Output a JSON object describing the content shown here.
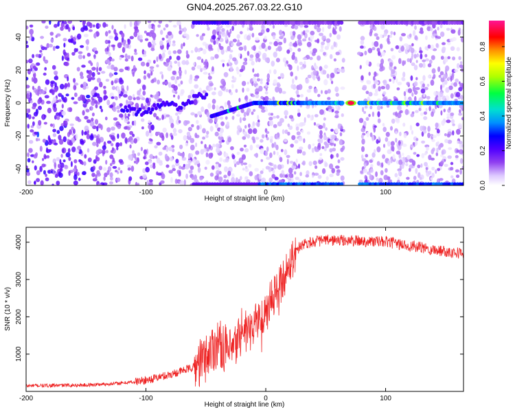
{
  "title": "GN04.2025.267.03.22.G10",
  "chart_data": [
    {
      "type": "heatmap",
      "name": "spectrogram",
      "xlabel": "Height of straight line (km)",
      "ylabel": "Frequency (Hz)",
      "xlim": [
        -200,
        165
      ],
      "ylim": [
        -50,
        50
      ],
      "xticks": [
        -200,
        -100,
        0,
        100
      ],
      "yticks": [
        -40,
        -20,
        0,
        20,
        40
      ],
      "xtick_labels": [
        "-200",
        "-100",
        "0",
        "100"
      ],
      "ytick_labels": [
        "-40",
        "-20",
        "0",
        "20",
        "40"
      ],
      "colorbar": {
        "label": "Normalized spectral amplitude",
        "range": [
          0,
          0.95
        ],
        "ticks": [
          0,
          0.2,
          0.4,
          0.6,
          0.8
        ],
        "tick_labels": [
          "0.0",
          "0.2",
          "0.4",
          "0.6",
          "0.8"
        ],
        "colors": [
          "#ffffff",
          "#d8bfff",
          "#8a2be2",
          "#5a00ff",
          "#0000ff",
          "#00c8ff",
          "#00ff60",
          "#a0ff00",
          "#ffff00",
          "#ffa000",
          "#ff0000",
          "#ff0080",
          "#ff1493"
        ]
      },
      "carrier_line": {
        "x_start": -88,
        "x_end": 165,
        "y": 0
      },
      "carrier_peak": {
        "x": 71,
        "y": 0,
        "value": 0.9
      },
      "gap": {
        "x_start": 65,
        "x_end": 78
      }
    },
    {
      "type": "line",
      "name": "snr",
      "xlabel": "Height of straight line (km)",
      "ylabel": "SNR (10 * v/v)",
      "xlim": [
        -200,
        165
      ],
      "ylim": [
        0,
        4400
      ],
      "xticks": [
        -200,
        -100,
        0,
        100
      ],
      "yticks": [
        1000,
        2000,
        3000,
        4000
      ],
      "xtick_labels": [
        "-200",
        "-100",
        "0",
        "100"
      ],
      "ytick_labels": [
        "1000",
        "2000",
        "3000",
        "4000"
      ],
      "color": "#ee2222",
      "series": [
        {
          "name": "SNR",
          "x": [
            -200,
            -150,
            -120,
            -100,
            -80,
            -60,
            -50,
            -45,
            -40,
            -35,
            -30,
            -25,
            -22,
            -20,
            -15,
            -10,
            -5,
            0,
            5,
            10,
            15,
            20,
            25,
            30,
            40,
            50,
            60,
            80,
            100,
            120,
            140,
            165
          ],
          "y": [
            150,
            170,
            220,
            300,
            450,
            650,
            900,
            1150,
            1300,
            1200,
            1000,
            1200,
            1500,
            1700,
            1600,
            1800,
            1950,
            2200,
            2450,
            2750,
            3050,
            3450,
            3750,
            3950,
            4020,
            4050,
            4050,
            4030,
            4010,
            3900,
            3800,
            3700
          ]
        }
      ]
    }
  ]
}
